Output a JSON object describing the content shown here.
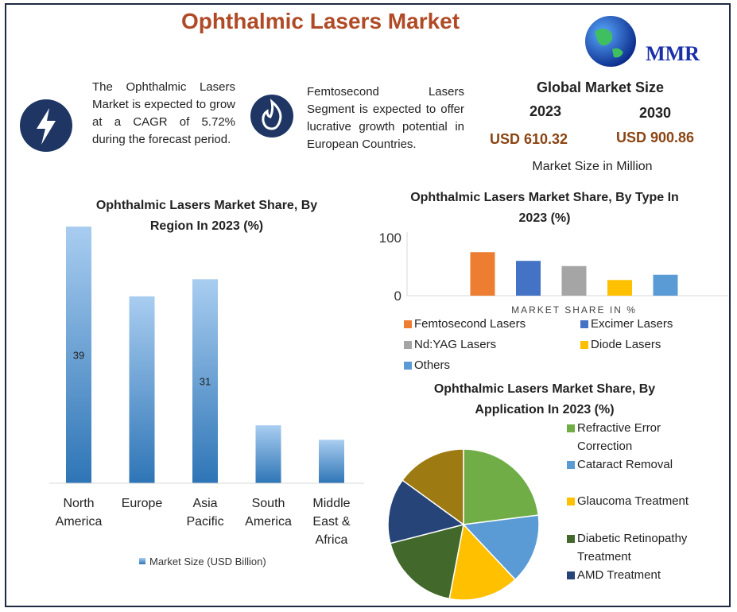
{
  "header": {
    "title": "Ophthalmic Lasers Market",
    "logo": "MMR"
  },
  "highlights": [
    "The Ophthalmic Lasers Market is expected to grow at a CAGR of 5.72% during the forecast period.",
    "Femtosecond Lasers Segment is expected to offer lucrative growth potential in European Countries."
  ],
  "market_size": {
    "title": "Global Market Size",
    "years": [
      "2023",
      "2030"
    ],
    "values": [
      "USD 610.32",
      "USD 900.86"
    ],
    "note": "Market Size in Million"
  },
  "chart_data": [
    {
      "type": "bar",
      "title": "Ophthalmic Lasers Market Share, By Region In 2023 (%)",
      "categories": [
        "North America",
        "Europe",
        "Asia Pacific",
        "South America",
        "Middle East & Africa"
      ],
      "values": [
        39,
        28.4,
        31,
        8.8,
        6.6
      ],
      "value_labels": [
        "39",
        null,
        "31",
        null,
        null
      ],
      "legend": "Market Size (USD Billion)",
      "color": "#2e75b6"
    },
    {
      "type": "bar",
      "title": "Ophthalmic Lasers Market Share, By Type In 2023 (%)",
      "xlabel": "MARKET SHARE IN %",
      "ylim": [
        0,
        100
      ],
      "yticks": [
        0,
        100
      ],
      "series": [
        {
          "name": "Femtosecond Lasers",
          "color": "#ed7d31",
          "values": [
            75
          ]
        },
        {
          "name": "Excimer Lasers",
          "color": "#4472c4",
          "values": [
            60
          ]
        },
        {
          "name": "Nd:YAG Lasers",
          "color": "#a5a5a5",
          "values": [
            51
          ]
        },
        {
          "name": "Diode Lasers",
          "color": "#ffc000",
          "values": [
            27
          ]
        },
        {
          "name": "Others",
          "color": "#5b9bd5",
          "values": [
            36
          ]
        }
      ]
    },
    {
      "type": "pie",
      "title": "Ophthalmic Lasers Market Share, By Application In 2023 (%)",
      "categories": [
        "Refractive Error Correction",
        "Cataract Removal",
        "Glaucoma Treatment",
        "Diabetic Retinopathy Treatment",
        "AMD Treatment",
        null
      ],
      "values": [
        23,
        15,
        15,
        18,
        14,
        15
      ],
      "colors": [
        "#70ad47",
        "#5b9bd5",
        "#ffc000",
        "#43682b",
        "#264478",
        "#9e7a12"
      ]
    }
  ]
}
